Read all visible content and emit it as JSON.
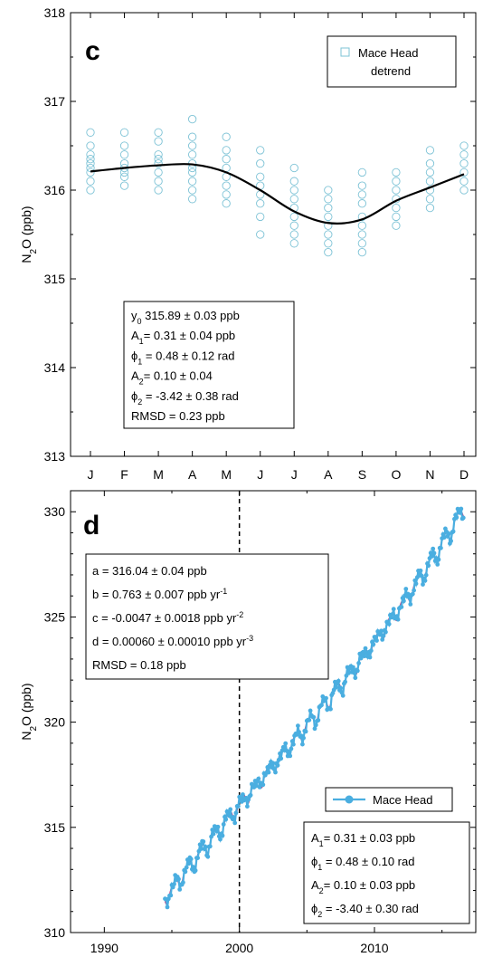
{
  "chart_data": [
    {
      "type": "scatter",
      "panel_label": "c",
      "xlabel": "",
      "ylabel": "N2O (ppb)",
      "ylabel_parts": {
        "main": "N",
        "sub": "2",
        "rest": "O (ppb)"
      },
      "ylim": [
        313,
        318
      ],
      "yticks": [
        313,
        314,
        315,
        316,
        317,
        318
      ],
      "yticks_labels": [
        "313",
        "314",
        "315",
        "316",
        "317",
        "318"
      ],
      "categories": [
        "J",
        "F",
        "M",
        "A",
        "M",
        "J",
        "J",
        "A",
        "S",
        "O",
        "N",
        "D"
      ],
      "legend": {
        "placement": "top-right",
        "entries": [
          {
            "name": "Mace Head detrend",
            "line1": "Mace Head",
            "line2": "detrend",
            "marker": "open-square"
          }
        ]
      },
      "series": [
        {
          "name": "Mace Head detrend",
          "kind": "points",
          "marker_color": "#7ec3d6",
          "monthly_values": [
            [
              316.0,
              316.1,
              316.2,
              316.25,
              316.3,
              316.35,
              316.4,
              316.5,
              316.65
            ],
            [
              316.05,
              316.15,
              316.2,
              316.25,
              316.3,
              316.4,
              316.5,
              316.65
            ],
            [
              316.0,
              316.1,
              316.2,
              316.3,
              316.35,
              316.4,
              316.55,
              316.65
            ],
            [
              315.9,
              316.0,
              316.1,
              316.2,
              316.25,
              316.3,
              316.4,
              316.5,
              316.6,
              316.8
            ],
            [
              315.85,
              315.95,
              316.05,
              316.15,
              316.25,
              316.35,
              316.45,
              316.6
            ],
            [
              315.5,
              315.7,
              315.85,
              315.95,
              316.05,
              316.15,
              316.3,
              316.45
            ],
            [
              315.4,
              315.5,
              315.6,
              315.7,
              315.8,
              315.9,
              316.0,
              316.1,
              316.25
            ],
            [
              315.3,
              315.4,
              315.5,
              315.6,
              315.7,
              315.8,
              315.9,
              316.0
            ],
            [
              315.3,
              315.4,
              315.5,
              315.6,
              315.7,
              315.85,
              315.95,
              316.05,
              316.2
            ],
            [
              315.6,
              315.7,
              315.8,
              315.9,
              316.0,
              316.1,
              316.2
            ],
            [
              315.8,
              315.9,
              316.0,
              316.1,
              316.2,
              316.3,
              316.45
            ],
            [
              316.0,
              316.1,
              316.2,
              316.3,
              316.4,
              316.5
            ]
          ]
        },
        {
          "name": "fit",
          "kind": "line",
          "color": "#000000",
          "x": [
            1,
            2,
            3,
            4,
            5,
            6,
            7,
            8,
            9,
            10,
            11,
            12
          ],
          "y": [
            316.21,
            316.25,
            316.28,
            316.29,
            316.2,
            316.0,
            315.76,
            315.63,
            315.67,
            315.88,
            316.03,
            316.18
          ]
        }
      ],
      "stats_box": [
        {
          "main": "y",
          "sub": "0",
          "rest": " 315.89 ± 0.03 ppb"
        },
        {
          "main": "A",
          "sub": "1",
          "rest": "= 0.31 ± 0.04 ppb"
        },
        {
          "main": "ϕ",
          "sub": "1",
          "rest": " = 0.48 ± 0.12 rad"
        },
        {
          "main": "A",
          "sub": "2",
          "rest": "= 0.10 ± 0.04"
        },
        {
          "main": "ϕ",
          "sub": "2",
          "rest": " = -3.42 ± 0.38 rad"
        },
        {
          "main": "RMSD = 0.23 ppb",
          "sub": "",
          "rest": ""
        }
      ]
    },
    {
      "type": "line",
      "panel_label": "d",
      "xlabel": "",
      "ylabel": "N2O (ppb)",
      "ylabel_parts": {
        "main": "N",
        "sub": "2",
        "rest": "O (ppb)"
      },
      "xlim": [
        1987.5,
        2017.5
      ],
      "ylim": [
        310,
        331
      ],
      "xticks": [
        1990,
        2000,
        2010
      ],
      "xticks_labels": [
        "1990",
        "2000",
        "2010"
      ],
      "yticks": [
        310,
        315,
        320,
        325,
        330
      ],
      "yticks_labels": [
        "310",
        "315",
        "320",
        "325",
        "330"
      ],
      "vline_x": 2000,
      "legend": {
        "placement": "lower-right",
        "entries": [
          {
            "name": "Mace Head",
            "marker": "filled-circle-line",
            "color": "#4aaee0"
          }
        ]
      },
      "series": [
        {
          "name": "Mace Head",
          "color": "#4aaee0",
          "x_start": 1994.5,
          "x_end": 2016.6,
          "trend": {
            "a": 316.04,
            "b": 0.763,
            "c": -0.0047,
            "d": 0.0006,
            "t0": 2000
          },
          "seasonal": {
            "A1": 0.31,
            "phi1": 0.48,
            "A2": 0.1,
            "phi2": -3.4
          }
        },
        {
          "name": "fit",
          "color": "#c0307a",
          "x_start": 1994.5,
          "x_end": 2016.6
        }
      ],
      "stats_box": [
        {
          "main": "a = 316.04 ± 0.04 ppb",
          "sup": ""
        },
        {
          "main": "b = 0.763 ± 0.007 ppb yr",
          "sup": "-1"
        },
        {
          "main": "c = -0.0047 ± 0.0018 ppb yr",
          "sup": "-2"
        },
        {
          "main": "d = 0.00060 ± 0.00010 ppb yr",
          "sup": "-3"
        },
        {
          "main": "RMSD = 0.18 ppb",
          "sup": ""
        }
      ],
      "stats_box2": [
        {
          "main": "A",
          "sub": "1",
          "rest": "= 0.31 ± 0.03 ppb"
        },
        {
          "main": "ϕ",
          "sub": "1",
          "rest": " = 0.48 ± 0.10 rad"
        },
        {
          "main": "A",
          "sub": "2",
          "rest": "= 0.10 ± 0.03 ppb"
        },
        {
          "main": "ϕ",
          "sub": "2",
          "rest": " = -3.40 ± 0.30 rad"
        }
      ]
    }
  ]
}
